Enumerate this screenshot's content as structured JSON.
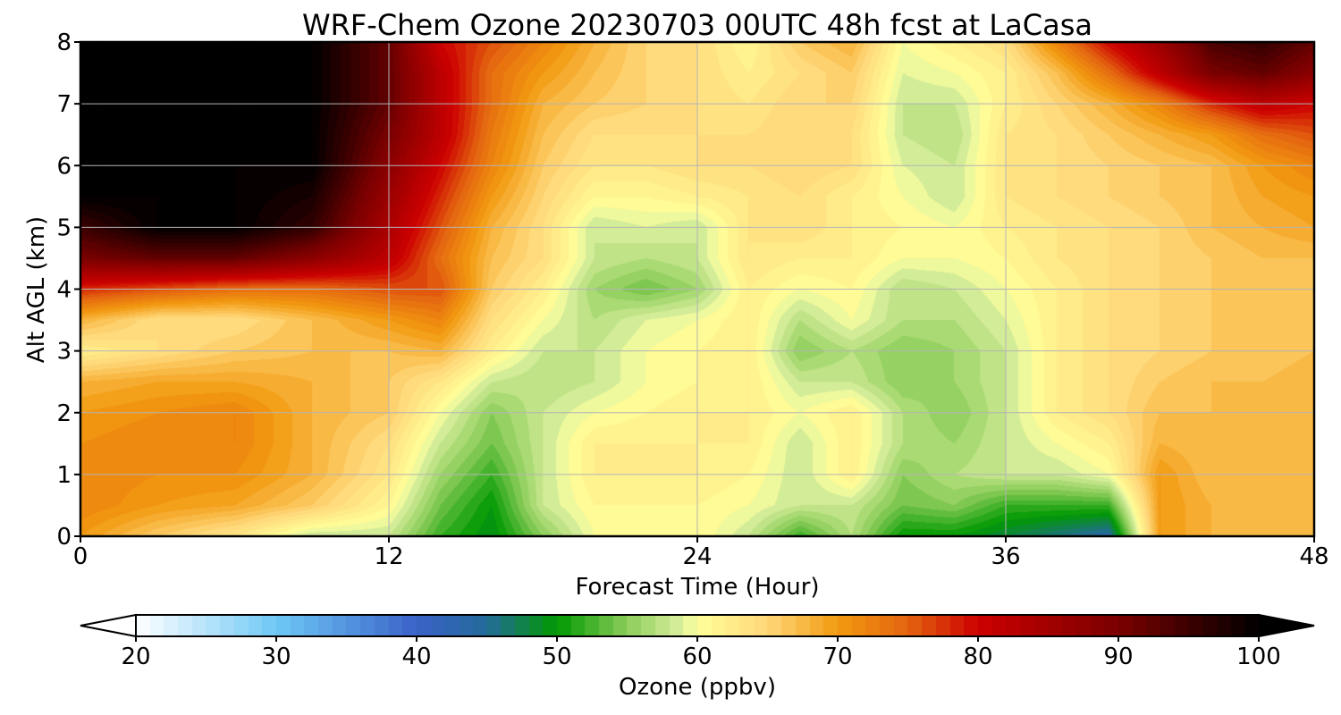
{
  "chart_data": {
    "type": "heatmap",
    "title": "WRF-Chem Ozone  20230703 00UTC 48h fcst at LaCasa",
    "xlabel": "Forecast Time (Hour)",
    "ylabel": "Alt AGL (km)",
    "xlim": [
      0,
      48
    ],
    "ylim": [
      0,
      8
    ],
    "xticks": [
      0,
      12,
      24,
      36,
      48
    ],
    "yticks": [
      0,
      1,
      2,
      3,
      4,
      5,
      6,
      7,
      8
    ],
    "grid": true,
    "colorbar": {
      "label": "Ozone  (ppbv)",
      "range": [
        20,
        100
      ],
      "ticks": [
        20,
        30,
        40,
        50,
        60,
        70,
        80,
        90,
        100
      ],
      "extend": "both",
      "colors": [
        {
          "v": 20,
          "c": "#ffffff"
        },
        {
          "v": 30,
          "c": "#6ec8f5"
        },
        {
          "v": 40,
          "c": "#3a62c8"
        },
        {
          "v": 45,
          "c": "#246a9a"
        },
        {
          "v": 50,
          "c": "#009900"
        },
        {
          "v": 55,
          "c": "#8ccc5a"
        },
        {
          "v": 59,
          "c": "#ddf0a0"
        },
        {
          "v": 60,
          "c": "#ffff99"
        },
        {
          "v": 65,
          "c": "#ffd77a"
        },
        {
          "v": 70,
          "c": "#f29a10"
        },
        {
          "v": 75,
          "c": "#e36410"
        },
        {
          "v": 80,
          "c": "#cc0000"
        },
        {
          "v": 90,
          "c": "#7a0000"
        },
        {
          "v": 100,
          "c": "#000000"
        }
      ]
    },
    "z_hours": [
      0,
      3,
      6,
      9,
      12,
      14,
      16,
      18,
      20,
      22,
      24,
      26,
      28,
      30,
      32,
      34,
      36,
      38,
      40,
      42,
      44,
      46,
      48
    ],
    "z_alts_km": [
      0,
      0.5,
      1,
      1.5,
      2,
      2.5,
      3,
      3.5,
      4,
      4.5,
      5,
      5.5,
      6,
      6.5,
      7,
      7.5,
      8
    ],
    "z_ppbv": [
      [
        70,
        66,
        63,
        58,
        58,
        52,
        49,
        55,
        60,
        60,
        61,
        58,
        52,
        57,
        50,
        50,
        48,
        46,
        44,
        70,
        68,
        67,
        68
      ],
      [
        72,
        70,
        69,
        66,
        61,
        54,
        50,
        58,
        61,
        61,
        61,
        60,
        58,
        58,
        54,
        55,
        52,
        52,
        52,
        70,
        68,
        67,
        68
      ],
      [
        72,
        71,
        71,
        68,
        63,
        56,
        52,
        58,
        62,
        62,
        62,
        61,
        58,
        62,
        55,
        57,
        58,
        58,
        60,
        70,
        67,
        67,
        68
      ],
      [
        71,
        72,
        72,
        68,
        64,
        58,
        54,
        58,
        62,
        62,
        62,
        62,
        58,
        62,
        57,
        56,
        58,
        60,
        62,
        68,
        67,
        67,
        68
      ],
      [
        70,
        71,
        72,
        68,
        66,
        60,
        55,
        58,
        60,
        61,
        62,
        62,
        60,
        62,
        57,
        55,
        58,
        62,
        64,
        67,
        67,
        67,
        68
      ],
      [
        68,
        69,
        69,
        68,
        66,
        63,
        58,
        57,
        58,
        60,
        61,
        62,
        58,
        58,
        55,
        56,
        58,
        62,
        64,
        66,
        67,
        67,
        68
      ],
      [
        62,
        64,
        66,
        67,
        67,
        68,
        62,
        58,
        58,
        60,
        61,
        62,
        55,
        57,
        55,
        56,
        58,
        62,
        64,
        65,
        66,
        66,
        67
      ],
      [
        68,
        64,
        64,
        67,
        70,
        72,
        64,
        60,
        57,
        59,
        60,
        62,
        57,
        60,
        57,
        57,
        59,
        62,
        64,
        65,
        66,
        66,
        66
      ],
      [
        78,
        76,
        74,
        74,
        76,
        76,
        66,
        62,
        56,
        54,
        56,
        62,
        60,
        61,
        57,
        58,
        60,
        62,
        64,
        65,
        66,
        66,
        66
      ],
      [
        90,
        92,
        92,
        88,
        82,
        74,
        67,
        64,
        58,
        57,
        58,
        63,
        62,
        62,
        60,
        60,
        61,
        63,
        64,
        65,
        66,
        67,
        67
      ],
      [
        95,
        100,
        100,
        96,
        84,
        76,
        68,
        64,
        58,
        59,
        58,
        63,
        64,
        62,
        61,
        60,
        62,
        63,
        64,
        65,
        67,
        68,
        69
      ],
      [
        100,
        100,
        100,
        98,
        86,
        78,
        70,
        65,
        61,
        61,
        62,
        63,
        64,
        62,
        60,
        58,
        63,
        64,
        65,
        66,
        67,
        69,
        70
      ],
      [
        100,
        100,
        100,
        100,
        88,
        80,
        72,
        66,
        63,
        63,
        64,
        64,
        65,
        64,
        59,
        58,
        63,
        64,
        65,
        66,
        67,
        70,
        72
      ],
      [
        100,
        100,
        100,
        100,
        90,
        82,
        73,
        67,
        64,
        64,
        64,
        64,
        65,
        64,
        58,
        57,
        63,
        64,
        66,
        68,
        70,
        74,
        76
      ],
      [
        100,
        100,
        100,
        100,
        92,
        82,
        74,
        68,
        66,
        65,
        64,
        63,
        65,
        65,
        58,
        58,
        62,
        65,
        68,
        72,
        78,
        82,
        80
      ],
      [
        100,
        100,
        100,
        100,
        92,
        82,
        74,
        70,
        67,
        65,
        64,
        62,
        64,
        66,
        59,
        60,
        62,
        67,
        74,
        82,
        90,
        92,
        88
      ],
      [
        100,
        100,
        100,
        100,
        92,
        80,
        76,
        72,
        68,
        65,
        64,
        61,
        66,
        68,
        60,
        62,
        64,
        72,
        80,
        86,
        94,
        96,
        92
      ]
    ]
  }
}
